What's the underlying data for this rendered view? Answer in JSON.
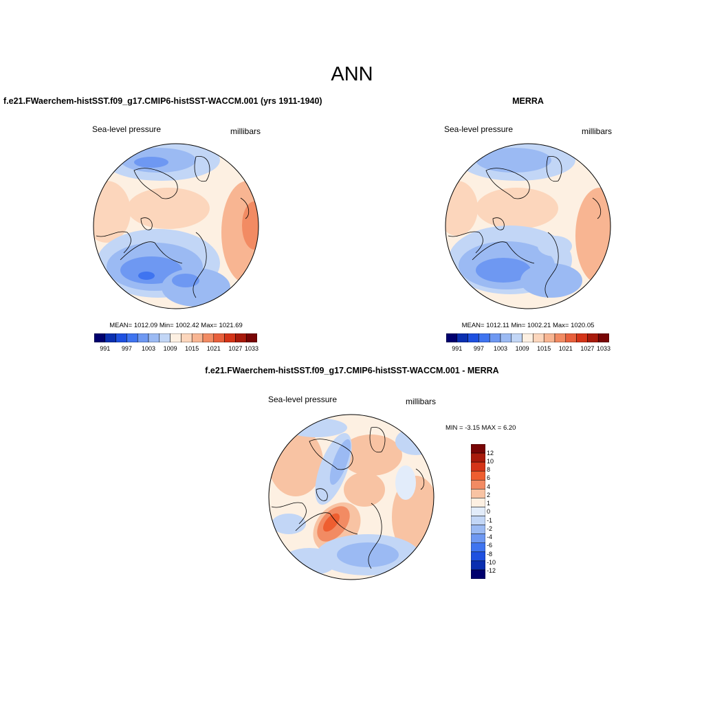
{
  "figure": {
    "title": "ANN"
  },
  "palettes": {
    "abs": [
      "#00006e",
      "#0a2fb0",
      "#1e50e0",
      "#3f74f0",
      "#6e98f2",
      "#9bbaf3",
      "#c2d6f6",
      "#fdf0e2",
      "#fcd6bc",
      "#f8b592",
      "#f28b63",
      "#e8603c",
      "#d43418",
      "#a81a0b",
      "#780505"
    ],
    "diff": [
      "#00006e",
      "#0a2fb0",
      "#1e50e0",
      "#3f74f0",
      "#6e98f2",
      "#9bbaf3",
      "#c2d6f6",
      "#e2ecfa",
      "#fdf0e2",
      "#f8c3a3",
      "#f28b63",
      "#ee5e30",
      "#d43418",
      "#a81a0b",
      "#780505"
    ]
  },
  "panels": {
    "model": {
      "title": "f.e21.FWaerchem-histSST.f09_g17.CMIP6-histSST-WACCM.001 (yrs 1911-1940)",
      "variable": "Sea-level pressure",
      "units": "millibars",
      "stats": "MEAN= 1012.09  Min= 1002.42  Max= 1021.69",
      "colorbar_labels": [
        "991",
        "997",
        "1003",
        "1009",
        "1015",
        "1021",
        "1027",
        "1033"
      ]
    },
    "obs": {
      "title": "MERRA",
      "variable": "Sea-level pressure",
      "units": "millibars",
      "stats": "MEAN= 1012.11  Min= 1002.21  Max= 1020.05",
      "colorbar_labels": [
        "991",
        "997",
        "1003",
        "1009",
        "1015",
        "1021",
        "1027",
        "1033"
      ]
    },
    "diff": {
      "title": "f.e21.FWaerchem-histSST.f09_g17.CMIP6-histSST-WACCM.001 - MERRA",
      "variable": "Sea-level pressure",
      "units": "millibars",
      "stats": "MIN =  -3.15 MAX =   6.20",
      "colorbar_labels": [
        "12",
        "10",
        "8",
        "6",
        "4",
        "2",
        "1",
        "0",
        "-1",
        "-2",
        "-4",
        "-6",
        "-8",
        "-10",
        "-12"
      ]
    }
  }
}
